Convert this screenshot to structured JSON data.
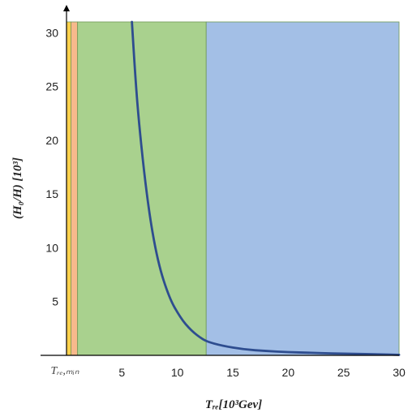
{
  "chart_data": {
    "type": "line",
    "ylabel": "(H₀/H) [10³]",
    "xlabel": "Tᵣₑ[10³Gev]",
    "x_special_label": "Tᵣₑ,ₘᵢₙ",
    "xlim": [
      0,
      30
    ],
    "ylim": [
      0,
      31
    ],
    "x_ticks": [
      5,
      10,
      15,
      20,
      25,
      30
    ],
    "y_ticks": [
      5,
      10,
      15,
      20,
      25,
      30
    ],
    "grid": false,
    "regions": [
      {
        "x_start": 0.0,
        "x_end": 0.4,
        "color": "#ffd24d"
      },
      {
        "x_start": 0.4,
        "x_end": 1.0,
        "color": "#f7b98c"
      },
      {
        "x_start": 1.0,
        "x_end": 12.6,
        "color": "#a9d18e"
      },
      {
        "x_start": 12.6,
        "x_end": 30.0,
        "color": "#a3bfe6"
      }
    ],
    "series": [
      {
        "color": "#2e4d8f",
        "x": [
          5.9,
          6.2,
          6.5,
          7.0,
          7.5,
          8.0,
          8.5,
          9.0,
          9.5,
          10.0,
          10.5,
          11.0,
          11.5,
          12.0,
          12.6,
          14.0,
          16.0,
          18.0,
          20.0,
          22.0,
          24.0,
          26.0,
          28.0,
          30.0
        ],
        "y": [
          31.0,
          26.0,
          22.0,
          17.0,
          13.0,
          10.0,
          7.8,
          6.2,
          4.9,
          4.0,
          3.2,
          2.6,
          2.1,
          1.7,
          1.3,
          0.9,
          0.55,
          0.4,
          0.3,
          0.24,
          0.18,
          0.14,
          0.1,
          0.05
        ]
      }
    ]
  }
}
